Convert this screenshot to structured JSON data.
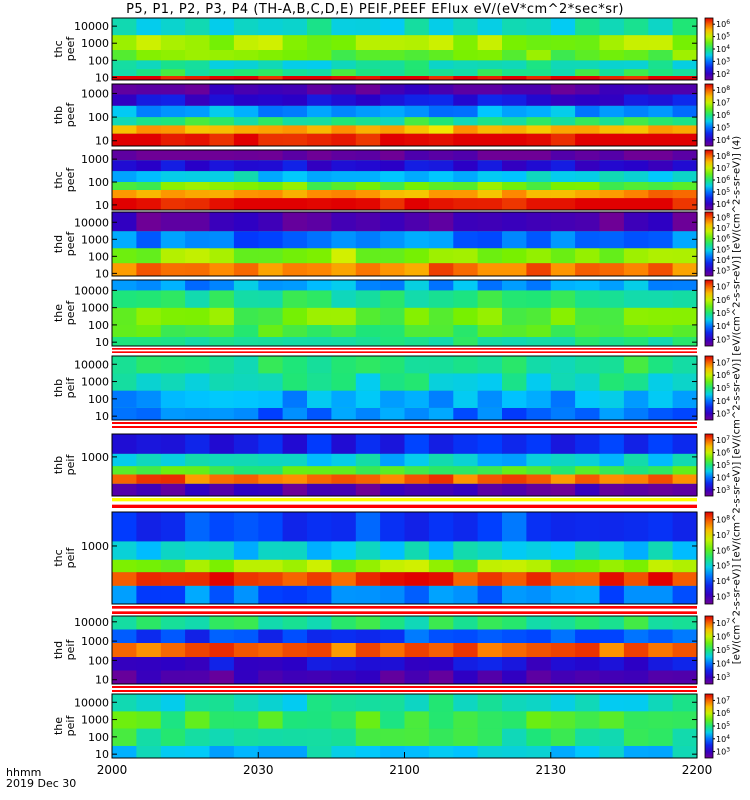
{
  "title": "P5, P1, P2, P3, P4 (TH-A,B,C,D,E) PEIF,PEEF EFlux eV/(eV*cm^2*sec*sr)",
  "time_axis": {
    "unit_label": "hhmm",
    "date_label": "2019 Dec 30"
  },
  "colorbar_unit": "[eV/(cm^2-s-sr-eV)] [eV/(cm^2-s-sr-eV)] [eV/(cm^2-s-sr-eV)] [eV/(cm^2-s-sr-eV)] [eV/(cm^2-s-sr-eV)] (4)",
  "chart_data": {
    "type": "heatmap",
    "x_ticks": [
      "2000",
      "2030",
      "2100",
      "2130",
      "2200"
    ],
    "x_range": [
      2000,
      2200
    ],
    "colormap": "rainbow (purple-blue-cyan-green-yellow-red)",
    "panels": [
      {
        "label": "thc peef",
        "y_ticks": [
          "10",
          "100",
          "1000",
          "10000"
        ],
        "ylim": [
          7,
          30000
        ],
        "cbar_ticks": [
          "10^2",
          "10^3",
          "10^4",
          "10^5",
          "10^6"
        ],
        "bands": [
          {
            "y": [
              7,
              12
            ],
            "v": 1.0
          },
          {
            "y": [
              12,
              30
            ],
            "v": 0.5
          },
          {
            "y": [
              30,
              100
            ],
            "v": 0.45
          },
          {
            "y": [
              100,
              400
            ],
            "v": 0.6
          },
          {
            "y": [
              400,
              3000
            ],
            "v": 0.66
          },
          {
            "y": [
              3000,
              30000
            ],
            "v": 0.45
          }
        ]
      },
      {
        "label": "thb peef",
        "y_ticks": [
          "10",
          "100",
          "1000"
        ],
        "ylim": [
          6,
          2500
        ],
        "cbar_ticks": [
          "10^4",
          "10^5",
          "10^6",
          "10^7",
          "10^8"
        ],
        "bands": [
          {
            "y": [
              6,
              20
            ],
            "v": 1.0
          },
          {
            "y": [
              20,
              45
            ],
            "v": 0.8
          },
          {
            "y": [
              45,
              100
            ],
            "v": 0.5
          },
          {
            "y": [
              100,
              300
            ],
            "v": 0.35
          },
          {
            "y": [
              300,
              900
            ],
            "v": 0.15
          },
          {
            "y": [
              900,
              2500
            ],
            "v": 0.05
          }
        ]
      },
      {
        "label": "thc peef",
        "y_ticks": [
          "10",
          "100",
          "1000"
        ],
        "ylim": [
          6,
          2500
        ],
        "cbar_ticks": [
          "10^4",
          "10^5",
          "10^6",
          "10^7",
          "10^8"
        ],
        "bands": [
          {
            "y": [
              6,
              20
            ],
            "v": 1.0
          },
          {
            "y": [
              20,
              45
            ],
            "v": 0.85
          },
          {
            "y": [
              45,
              100
            ],
            "v": 0.6
          },
          {
            "y": [
              100,
              300
            ],
            "v": 0.4
          },
          {
            "y": [
              300,
              900
            ],
            "v": 0.15
          },
          {
            "y": [
              900,
              2500
            ],
            "v": 0.0
          }
        ]
      },
      {
        "label": "thd peef",
        "y_ticks": [
          "10",
          "100",
          "1000",
          "10000"
        ],
        "ylim": [
          7,
          40000
        ],
        "cbar_ticks": [
          "10^3",
          "10^4",
          "10^5",
          "10^6",
          "10^7",
          "10^8"
        ],
        "bands": [
          {
            "y": [
              7,
              40
            ],
            "v": 0.88
          },
          {
            "y": [
              40,
              300
            ],
            "v": 0.65
          },
          {
            "y": [
              300,
              3000
            ],
            "v": 0.3
          },
          {
            "y": [
              3000,
              40000
            ],
            "v": 0.05
          }
        ]
      },
      {
        "label": "the peef",
        "y_ticks": [
          "10",
          "100",
          "1000",
          "10000"
        ],
        "ylim": [
          6,
          40000
        ],
        "cbar_ticks": [
          "10^3",
          "10^4",
          "10^5",
          "10^6",
          "10^7"
        ],
        "bands": [
          {
            "y": [
              6,
              20
            ],
            "v": 0.5
          },
          {
            "y": [
              20,
              100
            ],
            "v": 0.55
          },
          {
            "y": [
              100,
              1000
            ],
            "v": 0.6
          },
          {
            "y": [
              1000,
              10000
            ],
            "v": 0.5
          },
          {
            "y": [
              10000,
              40000
            ],
            "v": 0.35
          }
        ]
      },
      {
        "label": "thb peif",
        "y_ticks": [
          "10",
          "100",
          "1000",
          "10000"
        ],
        "ylim": [
          6,
          30000
        ],
        "cbar_ticks": [
          "10^3",
          "10^4",
          "10^5",
          "10^6",
          "10^7"
        ],
        "bands": [
          {
            "y": [
              6,
              30
            ],
            "v": 0.3
          },
          {
            "y": [
              30,
              300
            ],
            "v": 0.35
          },
          {
            "y": [
              300,
              3000
            ],
            "v": 0.45
          },
          {
            "y": [
              3000,
              30000
            ],
            "v": 0.5
          }
        ]
      },
      {
        "label": "thb peif",
        "y_ticks": [
          "1000"
        ],
        "ylim": [
          6,
          20000
        ],
        "cbar_ticks": [
          "10^3",
          "10^4",
          "10^5",
          "10^6",
          "10^7"
        ],
        "bands": [
          {
            "y": [
              6,
              30
            ],
            "v": 0.05
          },
          {
            "y": [
              30,
              100
            ],
            "v": 0.9
          },
          {
            "y": [
              100,
              300
            ],
            "v": 0.55
          },
          {
            "y": [
              300,
              1500
            ],
            "v": 0.4
          },
          {
            "y": [
              1500,
              20000
            ],
            "v": 0.2
          }
        ]
      },
      {
        "label": "thc peif",
        "y_ticks": [
          "1000"
        ],
        "ylim": [
          6,
          20000
        ],
        "cbar_ticks": [
          "10^3",
          "10^4",
          "10^5",
          "10^6",
          "10^7",
          "10^8"
        ],
        "bands": [
          {
            "y": [
              6,
              30
            ],
            "v": 0.3
          },
          {
            "y": [
              30,
              100
            ],
            "v": 0.95
          },
          {
            "y": [
              100,
              300
            ],
            "v": 0.65
          },
          {
            "y": [
              300,
              1500
            ],
            "v": 0.4
          },
          {
            "y": [
              1500,
              20000
            ],
            "v": 0.25
          }
        ]
      },
      {
        "label": "thd peif",
        "y_ticks": [
          "10",
          "100",
          "1000",
          "10000"
        ],
        "ylim": [
          6,
          20000
        ],
        "cbar_ticks": [
          "10^3",
          "10^4",
          "10^5",
          "10^6",
          "10^7"
        ],
        "bands": [
          {
            "y": [
              6,
              30
            ],
            "v": 0.05
          },
          {
            "y": [
              30,
              150
            ],
            "v": 0.15
          },
          {
            "y": [
              150,
              800
            ],
            "v": 0.9
          },
          {
            "y": [
              800,
              4000
            ],
            "v": 0.25
          },
          {
            "y": [
              4000,
              20000
            ],
            "v": 0.5
          }
        ]
      },
      {
        "label": "the peif",
        "y_ticks": [
          "10",
          "100",
          "1000",
          "10000"
        ],
        "ylim": [
          6,
          30000
        ],
        "cbar_ticks": [
          "10^3",
          "10^4",
          "10^5",
          "10^6",
          "10^7"
        ],
        "bands": [
          {
            "y": [
              6,
              30
            ],
            "v": 0.4
          },
          {
            "y": [
              30,
              300
            ],
            "v": 0.5
          },
          {
            "y": [
              300,
              3000
            ],
            "v": 0.55
          },
          {
            "y": [
              3000,
              30000
            ],
            "v": 0.45
          }
        ]
      }
    ]
  }
}
